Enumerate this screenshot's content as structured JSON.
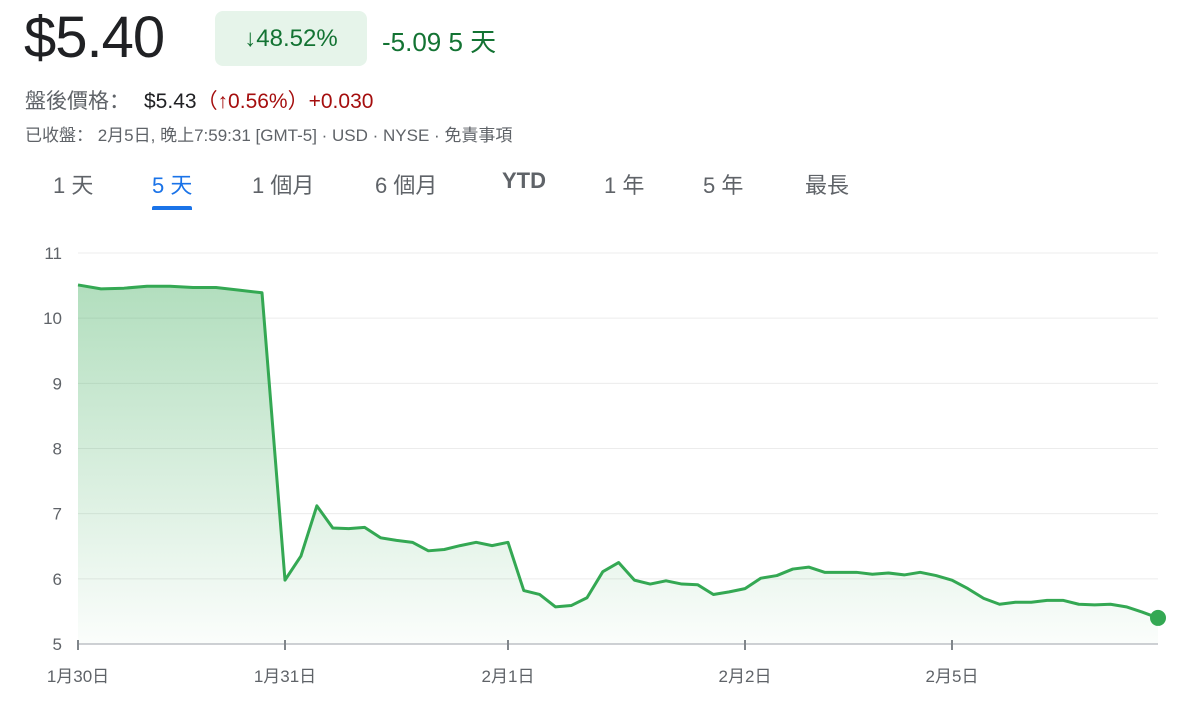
{
  "header": {
    "price": "$5.40",
    "change_pct": "↓48.52%",
    "change_abs": "-5.09 5 天",
    "after_hours_label": "盤後價格：",
    "after_hours_price": "$5.43",
    "after_hours_pct": "（↑0.56%）",
    "after_hours_change": "+0.030",
    "closed_info": "已收盤： 2月5日, 晚上7:59:31 [GMT-5] · USD · NYSE · 免責事項"
  },
  "tabs": [
    {
      "label": "1 天"
    },
    {
      "label": "5 天",
      "active": true
    },
    {
      "label": "1 個月"
    },
    {
      "label": "6 個月"
    },
    {
      "label": "YTD"
    },
    {
      "label": "1 年"
    },
    {
      "label": "5 年"
    },
    {
      "label": "最長"
    }
  ],
  "colors": {
    "line": "#34a853",
    "up": "#137333",
    "down_text": "#a50e0e",
    "accent": "#1a73e8"
  },
  "chart_data": {
    "type": "area",
    "ylim": [
      5,
      11
    ],
    "y_ticks": [
      5,
      6,
      7,
      8,
      9,
      10,
      11
    ],
    "grid": true,
    "x_ticks": [
      {
        "label": "1月30日",
        "index": 0
      },
      {
        "label": "1月31日",
        "index": 9
      },
      {
        "label": "2月1日",
        "index": 23
      },
      {
        "label": "2月2日",
        "index": 38
      },
      {
        "label": "2月5日",
        "index": 51
      }
    ],
    "values": [
      10.51,
      10.45,
      10.46,
      10.49,
      10.49,
      10.47,
      10.47,
      10.43,
      10.39,
      5.98,
      6.35,
      7.12,
      6.78,
      6.77,
      6.79,
      6.63,
      6.59,
      6.56,
      6.43,
      6.45,
      6.51,
      6.56,
      6.51,
      6.56,
      5.82,
      5.76,
      5.57,
      5.59,
      5.71,
      6.11,
      6.25,
      5.98,
      5.92,
      5.97,
      5.92,
      5.91,
      5.76,
      5.8,
      5.85,
      6.01,
      6.05,
      6.15,
      6.18,
      6.1,
      6.1,
      6.1,
      6.07,
      6.09,
      6.06,
      6.1,
      6.05,
      5.98,
      5.85,
      5.7,
      5.61,
      5.64,
      5.64,
      5.67,
      5.67,
      5.61,
      5.6,
      5.61,
      5.57,
      5.49,
      5.4
    ]
  }
}
